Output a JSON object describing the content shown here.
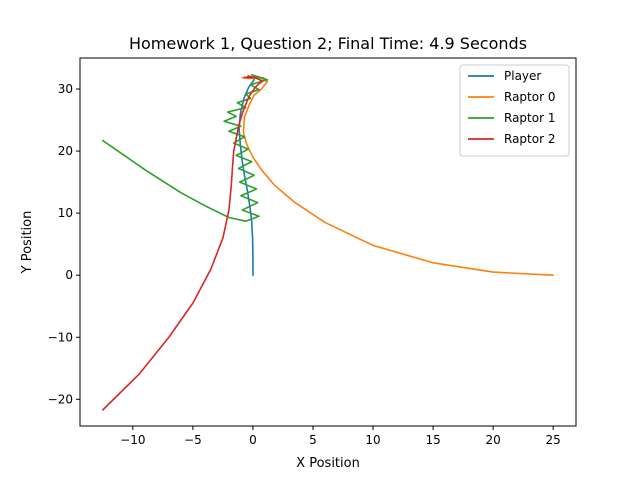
{
  "chart_data": {
    "type": "line",
    "title": "Homework 1, Question 2; Final Time: 4.9 Seconds",
    "xlabel": "X Position",
    "ylabel": "Y Position",
    "xlim": [
      -14.4,
      26.9
    ],
    "ylim": [
      -24.3,
      35.0
    ],
    "xticks": [
      -10,
      -5,
      0,
      5,
      10,
      15,
      20,
      25
    ],
    "yticks": [
      -20,
      -10,
      0,
      10,
      20,
      30
    ],
    "xtick_labels": [
      "−10",
      "−5",
      "0",
      "5",
      "10",
      "15",
      "20",
      "25"
    ],
    "ytick_labels": [
      "−20",
      "−10",
      "0",
      "10",
      "20",
      "30"
    ],
    "grid": false,
    "legend_position": "top-right",
    "series": [
      {
        "name": "Player",
        "color": "#1f77b4",
        "x": [
          0.0,
          0.0,
          -0.03,
          -0.1,
          -0.25,
          -0.45,
          -0.7,
          -0.9,
          -1.05,
          -1.15,
          -1.05,
          -0.75,
          -0.35,
          0.1
        ],
        "y": [
          0.0,
          3.0,
          6.0,
          8.5,
          11.0,
          13.5,
          16.0,
          18.5,
          21.0,
          23.5,
          26.0,
          28.5,
          30.3,
          31.5
        ]
      },
      {
        "name": "Raptor 0",
        "color": "#ff7f0e",
        "x": [
          25.0,
          20.0,
          15.0,
          10.0,
          6.0,
          3.5,
          1.8,
          0.7,
          0.0,
          -0.5,
          -0.8,
          -0.7,
          -0.3,
          0.1,
          0.7,
          1.2,
          0.6,
          -0.2,
          -0.9,
          -0.3,
          0.4,
          0.9
        ],
        "y": [
          0.0,
          0.5,
          2.0,
          4.8,
          8.5,
          11.7,
          14.5,
          17.0,
          19.0,
          21.0,
          23.0,
          25.5,
          27.5,
          29.0,
          30.0,
          31.2,
          31.9,
          32.0,
          31.8,
          31.7,
          31.8,
          31.8
        ]
      },
      {
        "name": "Raptor 1",
        "color": "#2ca02c",
        "x": [
          -12.5,
          -9.0,
          -6.0,
          -4.0,
          -2.0,
          -0.6,
          0.5,
          -0.9,
          0.4,
          -1.0,
          0.3,
          -1.1,
          0.1,
          -1.2,
          -0.1,
          -1.4,
          -0.4,
          -1.6,
          -0.7,
          -2.0,
          -1.0,
          -2.4,
          -1.4,
          -2.1,
          -0.6,
          -1.3,
          -0.2,
          -0.6,
          0.5,
          -0.2,
          1.2,
          -0.1,
          0.8
        ],
        "y": [
          21.7,
          17.0,
          13.3,
          11.2,
          9.3,
          8.7,
          9.5,
          10.5,
          11.7,
          12.8,
          13.9,
          15.0,
          16.1,
          17.2,
          18.3,
          19.3,
          20.3,
          21.3,
          22.3,
          23.2,
          24.0,
          24.8,
          25.6,
          26.3,
          27.0,
          27.8,
          28.5,
          29.2,
          29.9,
          30.7,
          31.5,
          32.3,
          31.7
        ]
      },
      {
        "name": "Raptor 2",
        "color": "#d62728",
        "x": [
          -12.5,
          -9.5,
          -7.0,
          -5.0,
          -3.5,
          -2.5,
          -2.0,
          -1.8,
          -1.7,
          -1.6,
          -1.4,
          -1.2,
          -0.9,
          -0.6,
          -0.4,
          -0.1,
          0.3,
          0.8,
          0.2,
          -0.4,
          0.1,
          -0.7
        ],
        "y": [
          -21.7,
          -16.0,
          -10.0,
          -4.5,
          1.0,
          6.0,
          10.5,
          14.5,
          17.5,
          20.0,
          22.0,
          24.0,
          26.0,
          27.5,
          28.5,
          29.5,
          30.5,
          31.3,
          31.8,
          32.1,
          31.8,
          31.9
        ]
      }
    ]
  }
}
